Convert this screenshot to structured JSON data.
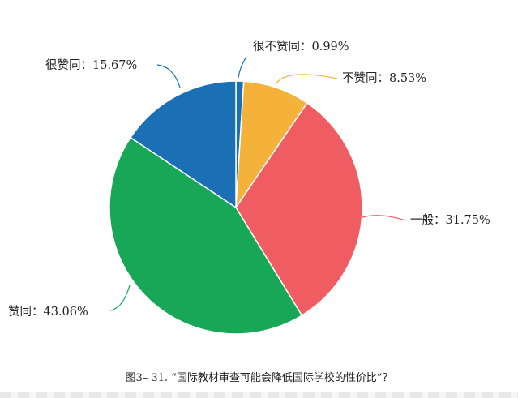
{
  "chart_data": {
    "type": "pie",
    "title": "",
    "slices": [
      {
        "label": "很不赞同：0.99%",
        "value": 0.99,
        "color": "#1a6fb5"
      },
      {
        "label": "不赞同：8.53%",
        "value": 8.53,
        "color": "#f5b23a"
      },
      {
        "label": "一般：31.75%",
        "value": 31.75,
        "color": "#ef5d62"
      },
      {
        "label": "赞同：43.06%",
        "value": 43.06,
        "color": "#18a657"
      },
      {
        "label": "很赞同：15.67%",
        "value": 15.67,
        "color": "#1a6fb5"
      }
    ],
    "start": "top",
    "direction": "clockwise"
  },
  "caption": "图3– 31. “国际教材审查可能会降低国际学校的性价比”？"
}
